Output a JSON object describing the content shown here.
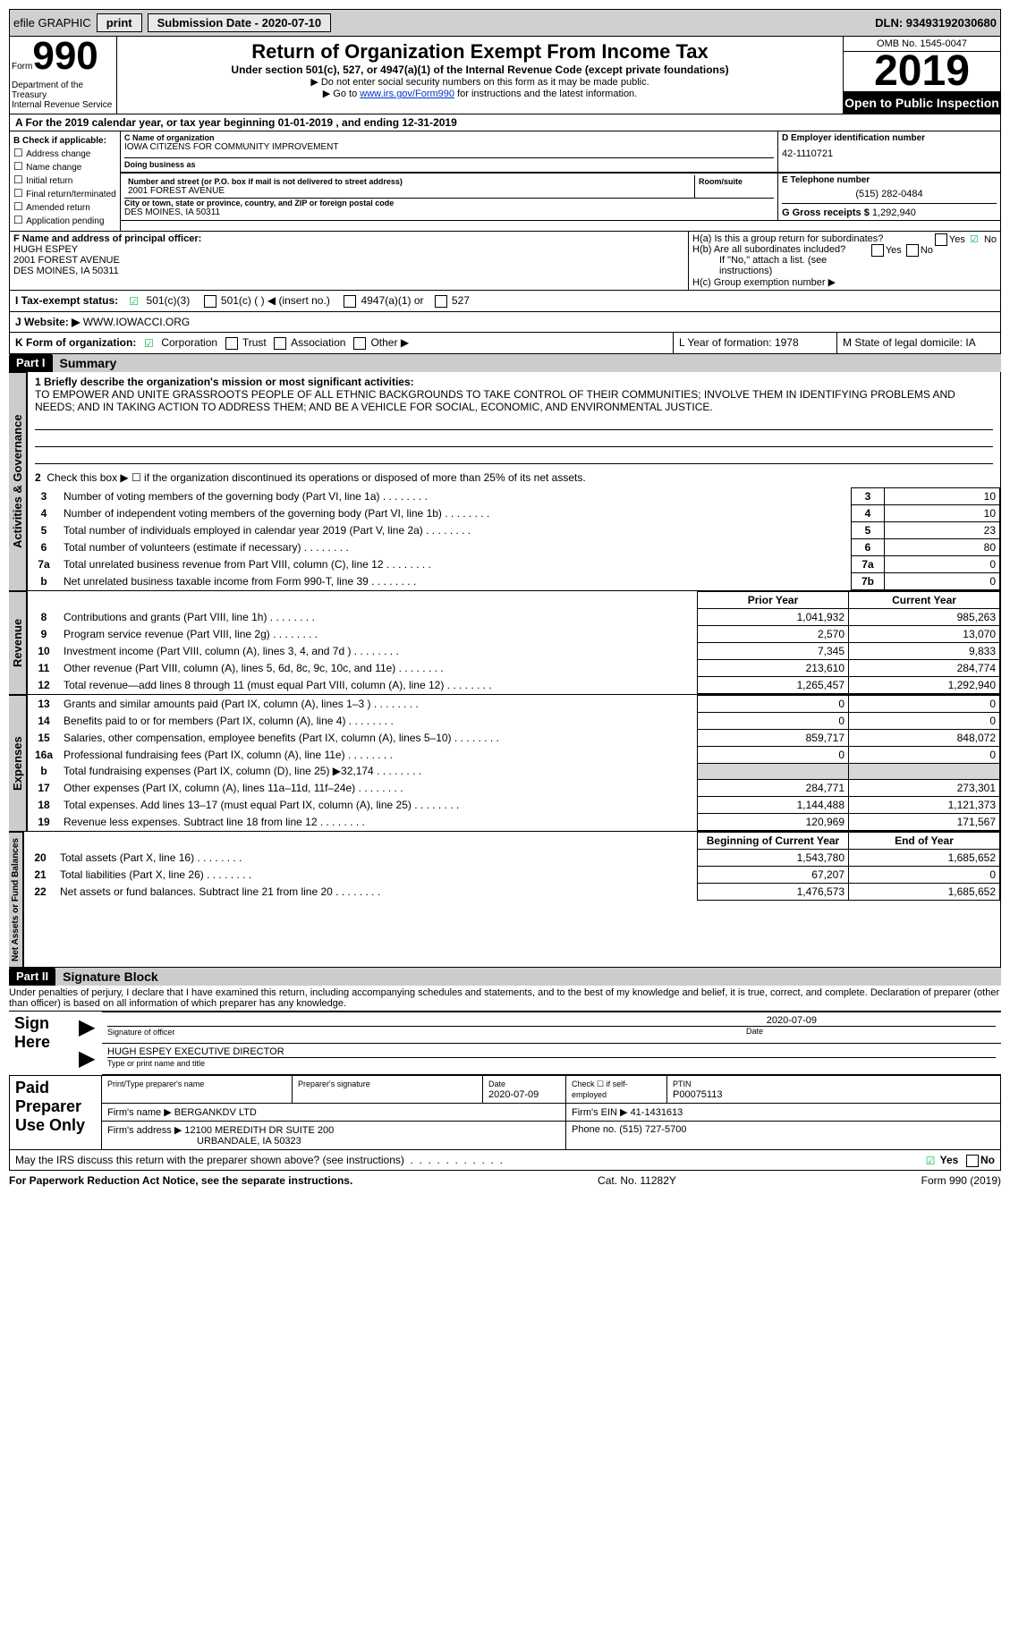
{
  "topbar": {
    "efile": "efile GRAPHIC",
    "print": "print",
    "submission": "Submission Date - 2020-07-10",
    "dln": "DLN: 93493192030680"
  },
  "header": {
    "form": "Form",
    "num": "990",
    "dept": "Department of the Treasury\nInternal Revenue Service",
    "title": "Return of Organization Exempt From Income Tax",
    "subtitle": "Under section 501(c), 527, or 4947(a)(1) of the Internal Revenue Code (except private foundations)",
    "line1": "▶ Do not enter social security numbers on this form as it may be made public.",
    "line2_pre": "▶ Go to ",
    "line2_link": "www.irs.gov/Form990",
    "line2_post": " for instructions and the latest information.",
    "omb": "OMB No. 1545-0047",
    "year": "2019",
    "open": "Open to Public Inspection"
  },
  "lineA": "A For the 2019 calendar year, or tax year beginning 01-01-2019   , and ending 12-31-2019",
  "boxB": {
    "title": "B Check if applicable:",
    "items": [
      "Address change",
      "Name change",
      "Initial return",
      "Final return/terminated",
      "Amended return",
      "Application pending"
    ]
  },
  "boxC": {
    "name_label": "C Name of organization",
    "name": "IOWA CITIZENS FOR COMMUNITY IMPROVEMENT",
    "dba_label": "Doing business as",
    "addr_label": "Number and street (or P.O. box if mail is not delivered to street address)",
    "room_label": "Room/suite",
    "addr": "2001 FOREST AVENUE",
    "city_label": "City or town, state or province, country, and ZIP or foreign postal code",
    "city": "DES MOINES, IA  50311"
  },
  "boxD": {
    "label": "D Employer identification number",
    "val": "42-1110721"
  },
  "boxE": {
    "label": "E Telephone number",
    "val": "(515) 282-0484"
  },
  "boxG": {
    "label": "G Gross receipts $",
    "val": "1,292,940"
  },
  "boxF": {
    "label": "F  Name and address of principal officer:",
    "name": "HUGH ESPEY",
    "addr1": "2001 FOREST AVENUE",
    "addr2": "DES MOINES, IA  50311"
  },
  "boxH": {
    "a": "H(a)  Is this a group return for subordinates?",
    "b": "H(b)  Are all subordinates included?",
    "note": "If \"No,\" attach a list. (see instructions)",
    "c": "H(c)  Group exemption number ▶"
  },
  "rowI": {
    "label": "I  Tax-exempt status:",
    "opts": [
      "501(c)(3)",
      "501(c) (  ) ◀ (insert no.)",
      "4947(a)(1) or",
      "527"
    ]
  },
  "rowJ": {
    "label": "J  Website: ▶",
    "val": "WWW.IOWACCI.ORG"
  },
  "rowK": {
    "label": "K Form of organization:",
    "opts": [
      "Corporation",
      "Trust",
      "Association",
      "Other ▶"
    ]
  },
  "rowL": "L Year of formation: 1978",
  "rowM": "M State of legal domicile: IA",
  "part1": {
    "label": "Part I",
    "title": "Summary"
  },
  "mission": {
    "prompt": "1  Briefly describe the organization's mission or most significant activities:",
    "text": "TO EMPOWER AND UNITE GRASSROOTS PEOPLE OF ALL ETHNIC BACKGROUNDS TO TAKE CONTROL OF THEIR COMMUNITIES; INVOLVE THEM IN IDENTIFYING PROBLEMS AND NEEDS; AND IN TAKING ACTION TO ADDRESS THEM; AND BE A VEHICLE FOR SOCIAL, ECONOMIC, AND ENVIRONMENTAL JUSTICE."
  },
  "line2": "Check this box ▶ ☐  if the organization discontinued its operations or disposed of more than 25% of its net assets.",
  "govLines": [
    {
      "n": "3",
      "t": "Number of voting members of the governing body (Part VI, line 1a)",
      "k": "3",
      "v": "10"
    },
    {
      "n": "4",
      "t": "Number of independent voting members of the governing body (Part VI, line 1b)",
      "k": "4",
      "v": "10"
    },
    {
      "n": "5",
      "t": "Total number of individuals employed in calendar year 2019 (Part V, line 2a)",
      "k": "5",
      "v": "23"
    },
    {
      "n": "6",
      "t": "Total number of volunteers (estimate if necessary)",
      "k": "6",
      "v": "80"
    },
    {
      "n": "7a",
      "t": "Total unrelated business revenue from Part VIII, column (C), line 12",
      "k": "7a",
      "v": "0"
    },
    {
      "n": "b",
      "t": "Net unrelated business taxable income from Form 990-T, line 39",
      "k": "7b",
      "v": "0"
    }
  ],
  "colHeaders": {
    "prior": "Prior Year",
    "current": "Current Year"
  },
  "revenue": [
    {
      "n": "8",
      "t": "Contributions and grants (Part VIII, line 1h)",
      "p": "1,041,932",
      "c": "985,263"
    },
    {
      "n": "9",
      "t": "Program service revenue (Part VIII, line 2g)",
      "p": "2,570",
      "c": "13,070"
    },
    {
      "n": "10",
      "t": "Investment income (Part VIII, column (A), lines 3, 4, and 7d )",
      "p": "7,345",
      "c": "9,833"
    },
    {
      "n": "11",
      "t": "Other revenue (Part VIII, column (A), lines 5, 6d, 8c, 9c, 10c, and 11e)",
      "p": "213,610",
      "c": "284,774"
    },
    {
      "n": "12",
      "t": "Total revenue—add lines 8 through 11 (must equal Part VIII, column (A), line 12)",
      "p": "1,265,457",
      "c": "1,292,940"
    }
  ],
  "expenses": [
    {
      "n": "13",
      "t": "Grants and similar amounts paid (Part IX, column (A), lines 1–3 )",
      "p": "0",
      "c": "0"
    },
    {
      "n": "14",
      "t": "Benefits paid to or for members (Part IX, column (A), line 4)",
      "p": "0",
      "c": "0"
    },
    {
      "n": "15",
      "t": "Salaries, other compensation, employee benefits (Part IX, column (A), lines 5–10)",
      "p": "859,717",
      "c": "848,072"
    },
    {
      "n": "16a",
      "t": "Professional fundraising fees (Part IX, column (A), line 11e)",
      "p": "0",
      "c": "0"
    },
    {
      "n": "b",
      "t": "Total fundraising expenses (Part IX, column (D), line 25) ▶32,174",
      "p": "",
      "c": "",
      "shade": true
    },
    {
      "n": "17",
      "t": "Other expenses (Part IX, column (A), lines 11a–11d, 11f–24e)",
      "p": "284,771",
      "c": "273,301"
    },
    {
      "n": "18",
      "t": "Total expenses. Add lines 13–17 (must equal Part IX, column (A), line 25)",
      "p": "1,144,488",
      "c": "1,121,373"
    },
    {
      "n": "19",
      "t": "Revenue less expenses. Subtract line 18 from line 12",
      "p": "120,969",
      "c": "171,567"
    }
  ],
  "balHeaders": {
    "begin": "Beginning of Current Year",
    "end": "End of Year"
  },
  "balances": [
    {
      "n": "20",
      "t": "Total assets (Part X, line 16)",
      "p": "1,543,780",
      "c": "1,685,652"
    },
    {
      "n": "21",
      "t": "Total liabilities (Part X, line 26)",
      "p": "67,207",
      "c": "0"
    },
    {
      "n": "22",
      "t": "Net assets or fund balances. Subtract line 21 from line 20",
      "p": "1,476,573",
      "c": "1,685,652"
    }
  ],
  "part2": {
    "label": "Part II",
    "title": "Signature Block"
  },
  "sigDecl": "Under penalties of perjury, I declare that I have examined this return, including accompanying schedules and statements, and to the best of my knowledge and belief, it is true, correct, and complete. Declaration of preparer (other than officer) is based on all information of which preparer has any knowledge.",
  "sign": {
    "here": "Sign Here",
    "sig_label": "Signature of officer",
    "date": "2020-07-09",
    "date_label": "Date",
    "name": "HUGH ESPEY  EXECUTIVE DIRECTOR",
    "name_label": "Type or print name and title"
  },
  "preparer": {
    "label": "Paid Preparer Use Only",
    "h1": "Print/Type preparer's name",
    "h2": "Preparer's signature",
    "h3": "Date",
    "date": "2020-07-09",
    "h4": "Check ☐ if self-employed",
    "h5": "PTIN",
    "ptin": "P00075113",
    "firm_l": "Firm's name    ▶",
    "firm": "BERGANKDV LTD",
    "ein_l": "Firm's EIN ▶",
    "ein": "41-1431613",
    "addr_l": "Firm's address ▶",
    "addr": "12100 MEREDITH DR SUITE 200",
    "addr2": "URBANDALE, IA  50323",
    "phone_l": "Phone no.",
    "phone": "(515) 727-5700"
  },
  "discuss": "May the IRS discuss this return with the preparer shown above? (see instructions)",
  "footer": {
    "l": "For Paperwork Reduction Act Notice, see the separate instructions.",
    "m": "Cat. No. 11282Y",
    "r": "Form 990 (2019)"
  },
  "tabs": {
    "gov": "Activities & Governance",
    "rev": "Revenue",
    "exp": "Expenses",
    "bal": "Net Assets or Fund Balances"
  }
}
